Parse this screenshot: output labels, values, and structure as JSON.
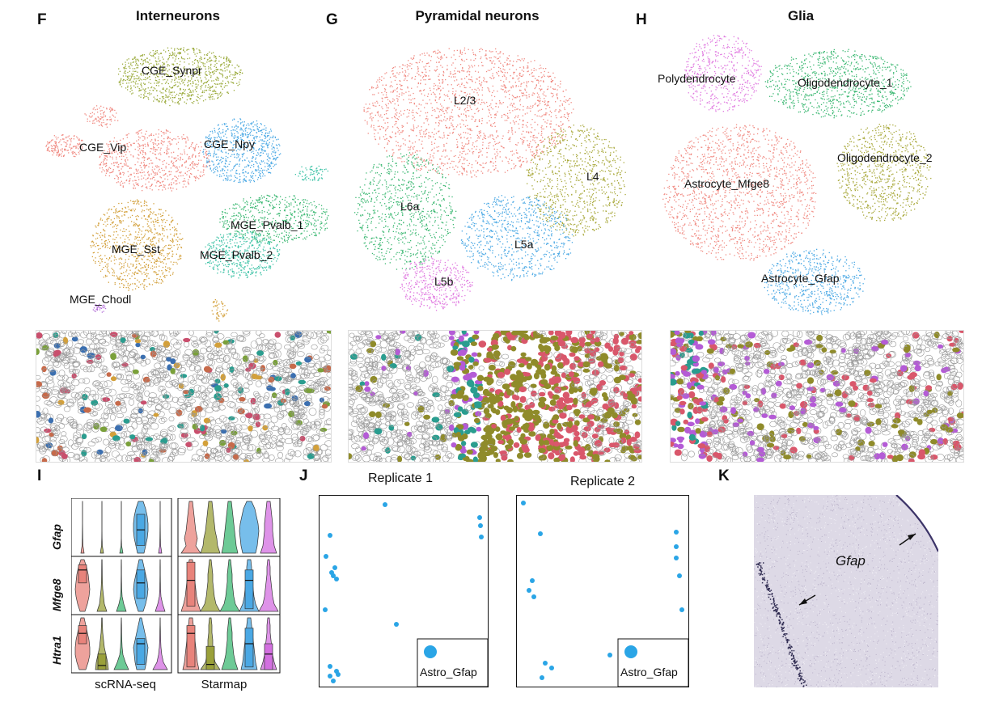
{
  "panels": {
    "F": {
      "letter": "F",
      "title": "Interneurons",
      "clusters": [
        {
          "name": "CGE_Synpr",
          "color": "#9aaa3a"
        },
        {
          "name": "CGE_Vip",
          "color": "#f08a82"
        },
        {
          "name": "CGE_Npy",
          "color": "#4aa8e4"
        },
        {
          "name": "MGE_Pvalb_1",
          "color": "#3cb873"
        },
        {
          "name": "MGE_Pvalb_2",
          "color": "#3cc2a6"
        },
        {
          "name": "MGE_Sst",
          "color": "#d3a03a"
        },
        {
          "name": "MGE_Chodl",
          "color": "#b46fd8"
        }
      ]
    },
    "G": {
      "letter": "G",
      "title": "Pyramidal neurons",
      "clusters": [
        {
          "name": "L2/3",
          "color": "#f08a82"
        },
        {
          "name": "L4",
          "color": "#a8a83a"
        },
        {
          "name": "L6a",
          "color": "#3cb873"
        },
        {
          "name": "L5a",
          "color": "#4aa8e4"
        },
        {
          "name": "L5b",
          "color": "#e07ae0"
        }
      ]
    },
    "H": {
      "letter": "H",
      "title": "Glia",
      "clusters": [
        {
          "name": "Polydendrocyte",
          "color": "#e07ae0"
        },
        {
          "name": "Oligodendrocyte_1",
          "color": "#3cb873"
        },
        {
          "name": "Oligodendrocyte_2",
          "color": "#a8a83a"
        },
        {
          "name": "Astrocyte_Mfge8",
          "color": "#f08a82"
        },
        {
          "name": "Astrocyte_Gfap",
          "color": "#4aa8e4"
        }
      ]
    },
    "I": {
      "letter": "I",
      "genes": [
        "Gfap",
        "Mfge8",
        "Htra1"
      ],
      "xlabels": [
        "scRNA-seq",
        "Starmap"
      ],
      "group_colors": [
        "#e8837b",
        "#9aa03a",
        "#3cb873",
        "#4aa8e4",
        "#d36fe0"
      ]
    },
    "J": {
      "letter": "J",
      "replicates": [
        {
          "title": "Replicate 1",
          "legend": "Astro_Gfap"
        },
        {
          "title": "Replicate 2",
          "legend": "Astro_Gfap"
        }
      ],
      "dot_color": "#2aa5e6"
    },
    "K": {
      "letter": "K",
      "label": "Gfap"
    }
  }
}
